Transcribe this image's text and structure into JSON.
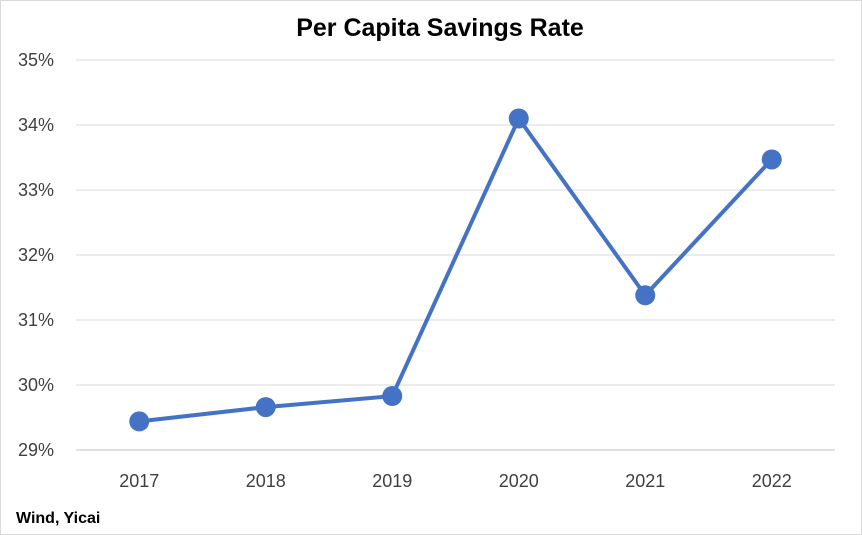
{
  "chart_data": {
    "type": "line",
    "title": "Per Capita Savings Rate",
    "categories": [
      "2017",
      "2018",
      "2019",
      "2020",
      "2021",
      "2022"
    ],
    "series": [
      {
        "values": [
          29.44,
          29.66,
          29.83,
          34.1,
          31.38,
          33.47
        ],
        "color": "#4472c4"
      }
    ],
    "ylim": [
      29,
      35
    ],
    "yticks": [
      29,
      30,
      31,
      32,
      33,
      34,
      35
    ],
    "ytick_labels": [
      "29%",
      "30%",
      "31%",
      "32%",
      "33%",
      "34%",
      "35%"
    ],
    "grid": true,
    "legend": "none"
  },
  "source": "Wind, Yicai"
}
